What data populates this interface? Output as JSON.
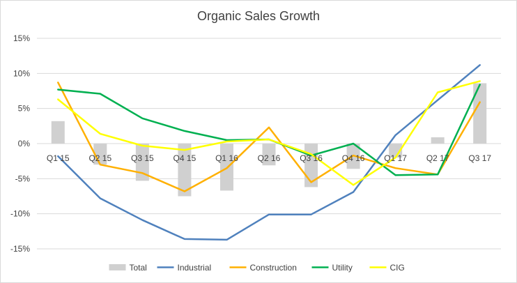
{
  "chart_data": {
    "type": "line",
    "title": "Organic Sales Growth",
    "categories": [
      "Q1 15",
      "Q2 15",
      "Q3 15",
      "Q4 15",
      "Q1 16",
      "Q2 16",
      "Q3 16",
      "Q4 16",
      "Q1 17",
      "Q2 17",
      "Q3 17"
    ],
    "ylim": [
      -15,
      15
    ],
    "yticks": [
      -15,
      -10,
      -5,
      0,
      5,
      10,
      15
    ],
    "ytick_labels": [
      "-15%",
      "-10%",
      "-5%",
      "0%",
      "5%",
      "10%",
      "15%"
    ],
    "grid": true,
    "legend_position": "bottom",
    "bar_series": {
      "name": "Total",
      "color": "#d0d0d0",
      "values": [
        3.2,
        -3.0,
        -5.3,
        -7.5,
        -6.7,
        -3.1,
        -6.2,
        -3.6,
        -2.0,
        0.9,
        8.6
      ]
    },
    "series": [
      {
        "name": "Industrial",
        "color": "#4f81bd",
        "values": [
          -1.8,
          -7.8,
          -10.9,
          -13.6,
          -13.7,
          -10.1,
          -10.1,
          -6.9,
          1.2,
          6.2,
          11.2
        ]
      },
      {
        "name": "Construction",
        "color": "#ffb000",
        "values": [
          8.7,
          -3.0,
          -4.2,
          -6.8,
          -3.5,
          2.3,
          -5.5,
          -1.7,
          -3.5,
          -4.4,
          5.9
        ]
      },
      {
        "name": "Utility",
        "color": "#00b050",
        "values": [
          7.7,
          7.1,
          3.6,
          1.8,
          0.5,
          0.6,
          -1.7,
          0.0,
          -4.5,
          -4.4,
          8.4
        ]
      },
      {
        "name": "CIG",
        "color": "#ffff00",
        "values": [
          6.3,
          1.4,
          -0.3,
          -0.9,
          0.3,
          0.6,
          -1.5,
          -5.9,
          -2.0,
          7.3,
          8.9
        ]
      }
    ]
  }
}
